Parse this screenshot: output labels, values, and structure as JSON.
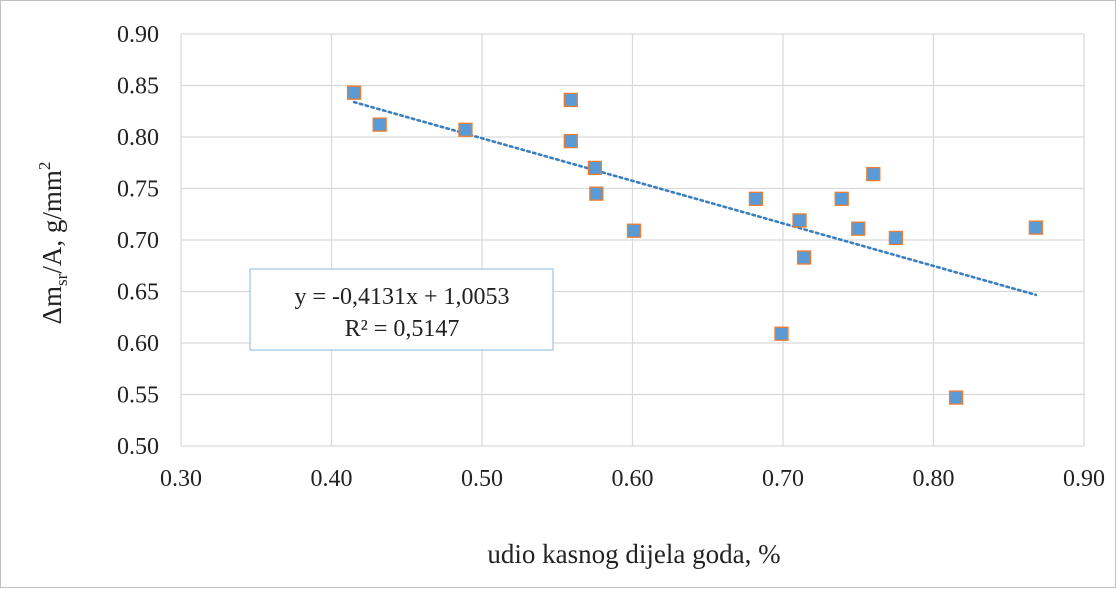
{
  "chart_data": {
    "type": "scatter",
    "xlabel": "udio kasnog dijela goda, %",
    "ylabel": {
      "base": "Δm",
      "sub": "sr",
      "mid": "/A, g/mm",
      "sup": "2"
    },
    "xlim": [
      0.3,
      0.9
    ],
    "ylim": [
      0.5,
      0.9
    ],
    "x_ticks": [
      "0.30",
      "0.40",
      "0.50",
      "0.60",
      "0.70",
      "0.80",
      "0.90"
    ],
    "y_ticks": [
      "0.50",
      "0.55",
      "0.60",
      "0.65",
      "0.70",
      "0.75",
      "0.80",
      "0.85",
      "0.90"
    ],
    "grid": true,
    "marker_color": "#5b9bd5",
    "marker_edge_color": "#ed7d31",
    "trendline_color": "#3a7fc0",
    "series": [
      {
        "points": [
          {
            "x": 0.415,
            "y": 0.843
          },
          {
            "x": 0.432,
            "y": 0.812
          },
          {
            "x": 0.489,
            "y": 0.807
          },
          {
            "x": 0.559,
            "y": 0.836
          },
          {
            "x": 0.559,
            "y": 0.796
          },
          {
            "x": 0.575,
            "y": 0.77
          },
          {
            "x": 0.576,
            "y": 0.745
          },
          {
            "x": 0.601,
            "y": 0.709
          },
          {
            "x": 0.682,
            "y": 0.74
          },
          {
            "x": 0.699,
            "y": 0.609
          },
          {
            "x": 0.711,
            "y": 0.719
          },
          {
            "x": 0.714,
            "y": 0.683
          },
          {
            "x": 0.739,
            "y": 0.74
          },
          {
            "x": 0.75,
            "y": 0.711
          },
          {
            "x": 0.76,
            "y": 0.764
          },
          {
            "x": 0.775,
            "y": 0.702
          },
          {
            "x": 0.815,
            "y": 0.547
          },
          {
            "x": 0.868,
            "y": 0.712
          }
        ]
      }
    ],
    "trendline": {
      "type": "linear",
      "slope": -0.4131,
      "intercept": 1.0053,
      "x_range": [
        0.415,
        0.868
      ],
      "equation_label": "y = -0,4131x + 1,0053",
      "r2_label": "R² = 0,5147"
    }
  }
}
